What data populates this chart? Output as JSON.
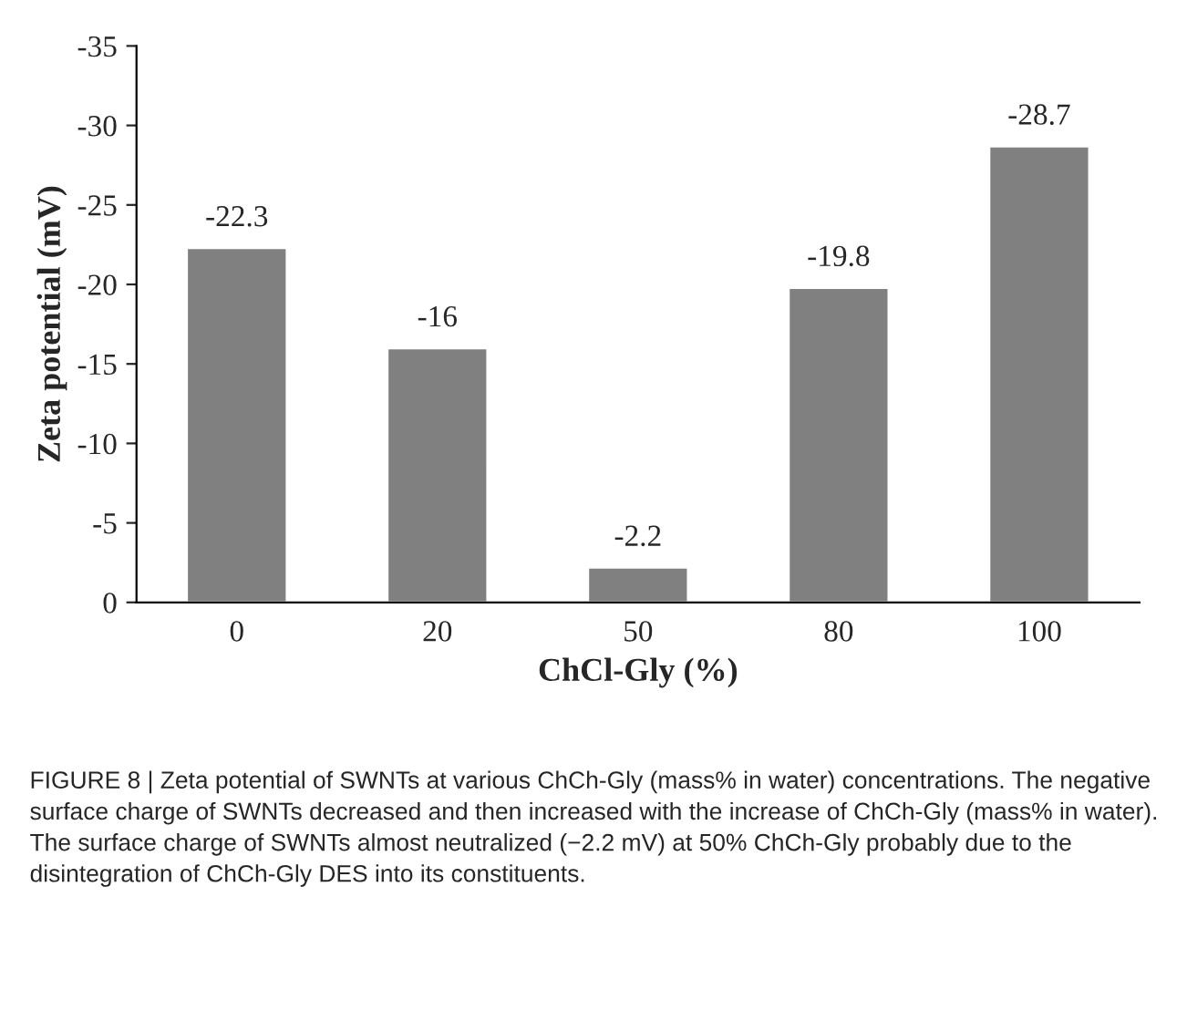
{
  "chart_data": {
    "type": "bar",
    "xlabel": "ChCl-Gly (%)",
    "ylabel": "Zeta potential (mV)",
    "categories": [
      "0",
      "20",
      "50",
      "80",
      "100"
    ],
    "values": [
      -22.3,
      -16,
      -2.2,
      -19.8,
      -28.7
    ],
    "color": "#808080",
    "ylim": [
      0,
      -35
    ],
    "yticks": [
      0,
      -5,
      -10,
      -15,
      -20,
      -25,
      -30,
      -35
    ],
    "data_labels": true,
    "grid": false,
    "legend": false,
    "annotations": [
      "FIGURE 8 | Zeta potential of SWNTs at various ChCh-Gly (mass% in water) concentrations. The negative surface charge of SWNTs decreased and then increased with the increase of ChCh-Gly (mass% in water). The surface charge of SWNTs almost neutralized (−2.2 mV) at 50% ChCh-Gly probably due to the disintegration of ChCh-Gly DES into its constituents."
    ]
  }
}
